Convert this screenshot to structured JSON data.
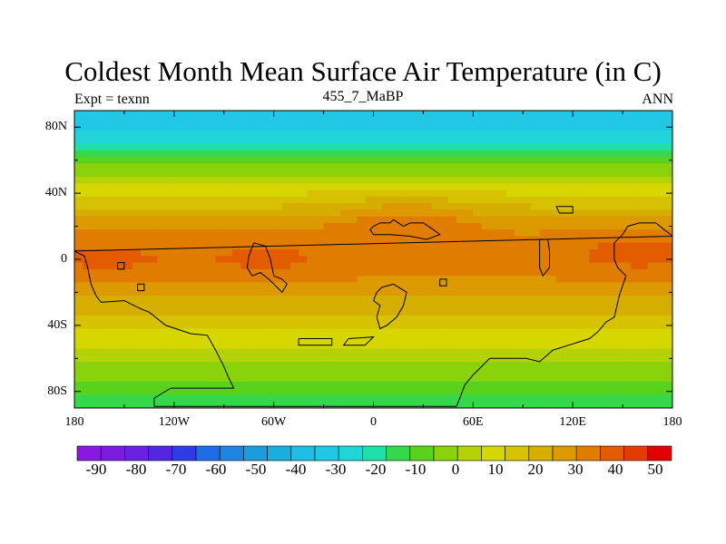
{
  "title": "Coldest Month Mean Surface Air Temperature (in C)",
  "left_string": "Expt = texnn",
  "center_string": "455_7_MaBP",
  "right_string": "ANN",
  "lat_labels": [
    "80N",
    "40N",
    "0",
    "40S",
    "80S"
  ],
  "lat_values": [
    80,
    40,
    0,
    -40,
    -80
  ],
  "lon_labels": [
    "180",
    "120W",
    "60W",
    "0",
    "60E",
    "120E",
    "180"
  ],
  "lon_values": [
    -180,
    -120,
    -60,
    0,
    60,
    120,
    180
  ],
  "colorbar": {
    "labels": [
      "-90",
      "-80",
      "-70",
      "-60",
      "-50",
      "-40",
      "-30",
      "-20",
      "-10",
      "0",
      "10",
      "20",
      "30",
      "40",
      "50"
    ],
    "colors": [
      "#8a19e0",
      "#7a1ce0",
      "#6a22e0",
      "#5326e0",
      "#2f3be4",
      "#1e6ce6",
      "#1e86e0",
      "#1e9ae0",
      "#1aaee0",
      "#1ebee6",
      "#20c8e6",
      "#20d4d8",
      "#1ee0a8",
      "#34d84a",
      "#58d21c",
      "#8ad20a",
      "#b4d206",
      "#d6d600",
      "#d6c200",
      "#d6ae00",
      "#dc9a00",
      "#e07c00",
      "#e45c00",
      "#e43c00",
      "#e40000"
    ]
  },
  "chart_data": {
    "type": "heatmap",
    "title": "Coldest Month Mean Surface Air Temperature (in C)",
    "subtitle": "455_7_MaBP",
    "variable_units": "C",
    "xlim": [
      -180,
      180
    ],
    "ylim": [
      -90,
      90
    ],
    "zonal_mean_profile": {
      "lat": [
        90,
        80,
        70,
        60,
        50,
        40,
        30,
        20,
        10,
        0,
        -10,
        -20,
        -30,
        -40,
        -50,
        -60,
        -70,
        -80,
        -90
      ],
      "temp_c": [
        -33,
        -30,
        -22,
        -8,
        4,
        14,
        22,
        31,
        35,
        36,
        34,
        28,
        22,
        16,
        10,
        4,
        -2,
        -10,
        -18
      ]
    },
    "warm_pools": [
      {
        "lon": -160,
        "lat": 0,
        "temp_c": 41
      },
      {
        "lon": -65,
        "lat": 0,
        "temp_c": 41
      },
      {
        "lon": 20,
        "lat": 25,
        "temp_c": 36
      },
      {
        "lon": 160,
        "lat": 5,
        "temp_c": 42
      }
    ],
    "continents": [
      {
        "name": "continent-north-america",
        "points": [
          [
            -180,
            5
          ],
          [
            -174,
            2
          ],
          [
            -172,
            -5
          ],
          [
            -170,
            -15
          ],
          [
            -167,
            -22
          ],
          [
            -164,
            -26
          ],
          [
            -150,
            -25
          ],
          [
            -140,
            -30
          ],
          [
            -135,
            -32
          ],
          [
            -125,
            -40
          ],
          [
            -110,
            -45
          ],
          [
            -100,
            -46
          ],
          [
            -95,
            -55
          ],
          [
            -90,
            -65
          ],
          [
            -87,
            -72
          ],
          [
            -84,
            -78
          ],
          [
            -100,
            -78
          ],
          [
            -122,
            -78
          ],
          [
            -132,
            -84
          ],
          [
            -132,
            -89
          ],
          [
            50,
            -89
          ],
          [
            52,
            -84
          ],
          [
            55,
            -76
          ],
          [
            60,
            -70
          ],
          [
            70,
            -60
          ],
          [
            85,
            -60
          ],
          [
            92,
            -60
          ],
          [
            100,
            -62
          ],
          [
            108,
            -55
          ],
          [
            130,
            -48
          ],
          [
            135,
            -44
          ],
          [
            140,
            -38
          ],
          [
            145,
            -35
          ],
          [
            148,
            -22
          ],
          [
            152,
            -10
          ],
          [
            147,
            -5
          ],
          [
            145,
            0
          ],
          [
            145,
            10
          ],
          [
            150,
            15
          ],
          [
            153,
            20
          ],
          [
            160,
            22
          ],
          [
            170,
            22
          ],
          [
            175,
            18
          ],
          [
            180,
            14
          ]
        ]
      },
      {
        "name": "continent-south-america",
        "points": [
          [
            -72,
            10
          ],
          [
            -65,
            8
          ],
          [
            -62,
            0
          ],
          [
            -60,
            -10
          ],
          [
            -55,
            -12
          ],
          [
            -52,
            -15
          ],
          [
            -55,
            -20
          ],
          [
            -60,
            -15
          ],
          [
            -63,
            -12
          ],
          [
            -68,
            -8
          ],
          [
            -73,
            -10
          ],
          [
            -76,
            -5
          ],
          [
            -75,
            2
          ]
        ]
      },
      {
        "name": "continent-africa",
        "points": [
          [
            -2,
            18
          ],
          [
            0,
            20
          ],
          [
            4,
            22
          ],
          [
            10,
            22
          ],
          [
            12,
            24
          ],
          [
            18,
            20
          ],
          [
            22,
            22
          ],
          [
            30,
            22
          ],
          [
            36,
            18
          ],
          [
            40,
            15
          ],
          [
            32,
            12
          ],
          [
            22,
            14
          ],
          [
            10,
            15
          ],
          [
            0,
            15
          ]
        ]
      },
      {
        "name": "continent-southern-africa",
        "points": [
          [
            0,
            -25
          ],
          [
            2,
            -20
          ],
          [
            5,
            -17
          ],
          [
            12,
            -15
          ],
          [
            20,
            -20
          ],
          [
            18,
            -28
          ],
          [
            14,
            -35
          ],
          [
            8,
            -40
          ],
          [
            4,
            -42
          ],
          [
            2,
            -35
          ],
          [
            4,
            -28
          ]
        ]
      },
      {
        "name": "continent-india",
        "points": [
          [
            100,
            12
          ],
          [
            105,
            12
          ],
          [
            106,
            5
          ],
          [
            106,
            -5
          ],
          [
            102,
            -10
          ],
          [
            100,
            -5
          ],
          [
            100,
            5
          ]
        ]
      },
      {
        "name": "continent-northeast-island",
        "points": [
          [
            110,
            32
          ],
          [
            120,
            32
          ],
          [
            120,
            28
          ],
          [
            112,
            28
          ]
        ]
      },
      {
        "name": "island-south-1",
        "points": [
          [
            -45,
            -48
          ],
          [
            -25,
            -48
          ],
          [
            -25,
            -52
          ],
          [
            -45,
            -52
          ]
        ]
      },
      {
        "name": "island-south-2",
        "points": [
          [
            -15,
            -48
          ],
          [
            0,
            -47
          ],
          [
            -5,
            -52
          ],
          [
            -18,
            -52
          ]
        ]
      },
      {
        "name": "island-pacific-1",
        "points": [
          [
            -154,
            -2
          ],
          [
            -150,
            -2
          ],
          [
            -150,
            -6
          ],
          [
            -154,
            -6
          ]
        ]
      },
      {
        "name": "island-pacific-2",
        "points": [
          [
            -142,
            -15
          ],
          [
            -138,
            -15
          ],
          [
            -138,
            -19
          ],
          [
            -142,
            -19
          ]
        ]
      },
      {
        "name": "island-atlantic-1",
        "points": [
          [
            40,
            -12
          ],
          [
            44,
            -12
          ],
          [
            44,
            -16
          ],
          [
            40,
            -16
          ]
        ]
      }
    ]
  }
}
